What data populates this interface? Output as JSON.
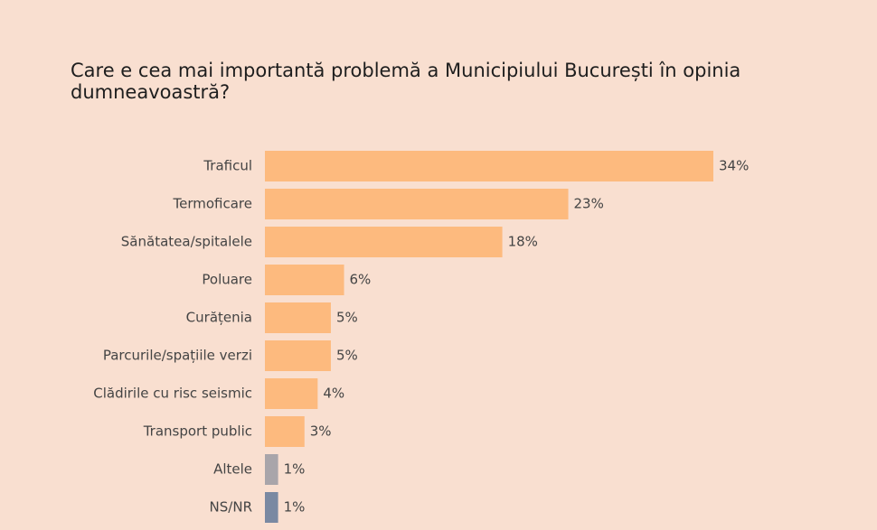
{
  "chart_data": {
    "type": "barh",
    "title": "Care e cea mai importantă problemă a Municipiului București în opinia dumneavoastră?",
    "categories": [
      "Traficul",
      "Termoficare",
      "Sănătatea/spitalele",
      "Poluare",
      "Curățenia",
      "Parcurile/spațiile verzi",
      "Clădirile cu risc seismic",
      "Transport public",
      "Altele",
      "NS/NR"
    ],
    "values": [
      34,
      23,
      18,
      6,
      5,
      5,
      4,
      3,
      1,
      1
    ],
    "value_labels": [
      "34%",
      "23%",
      "18%",
      "6%",
      "5%",
      "5%",
      "4%",
      "3%",
      "1%",
      "1%"
    ],
    "colors": [
      "#fdba7e",
      "#fdba7e",
      "#fdba7e",
      "#fdba7e",
      "#fdba7e",
      "#fdba7e",
      "#fdba7e",
      "#fdba7e",
      "#a9a5aa",
      "#7a89a2"
    ]
  }
}
